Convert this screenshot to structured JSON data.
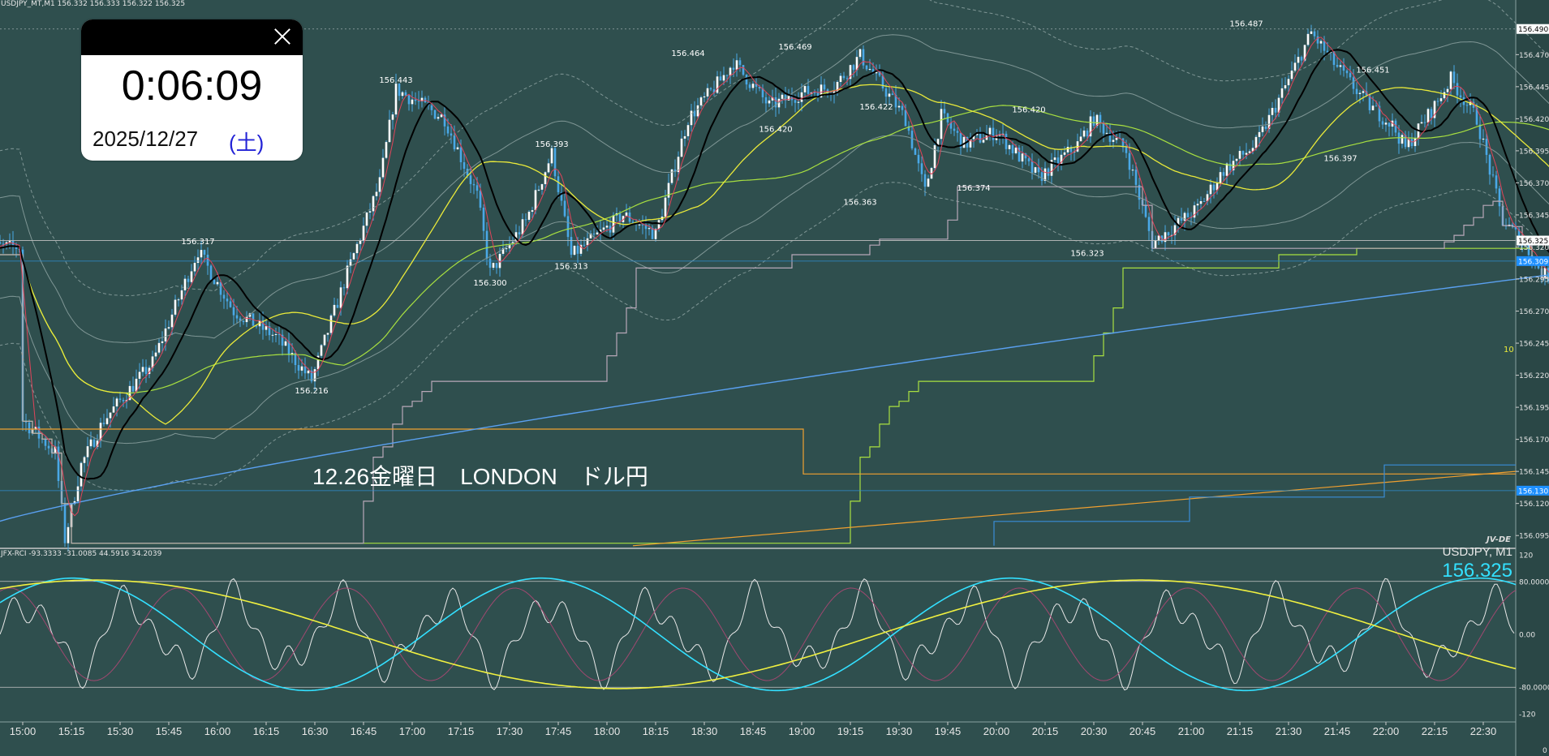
{
  "header": {
    "symbol_info": "USDJPY_MT,M1  156.332 156.333 156.322 156.325"
  },
  "rci": {
    "label": "JFX-RCI -93.3333 -31.0085 44.5916 34.2039"
  },
  "symbol_panel": {
    "name": "USDJPY, M1",
    "price": "156.325"
  },
  "annotation": "12.26金曜日　LONDON　ドル円",
  "clock_widget": {
    "time": "0:06:09",
    "date": "2025/12/27",
    "weekday": "(土)",
    "close_icon": "close-icon"
  },
  "logo": "JV-DE",
  "colors": {
    "background": "#2f4f4e",
    "candle": "#4aa8e6",
    "ma_fast": "#e0445a",
    "ma_mid": "#000000",
    "ma_yellow": "#eaea3a",
    "ma_lime": "#a8e040",
    "ma_gray": "#b8a8b8",
    "ma_long": "#5aa0f0",
    "orange": "#f0a030",
    "rci_cyan": "#33e0ff",
    "rci_yellow": "#f0f040",
    "rci_white": "#e8e8e8"
  },
  "chart_data": [
    {
      "type": "candlestick",
      "title": "USDJPY_MT,M1",
      "x_ticks": [
        "15:00",
        "15:15",
        "15:30",
        "15:45",
        "16:00",
        "16:15",
        "16:30",
        "16:45",
        "17:00",
        "17:15",
        "17:30",
        "17:45",
        "18:00",
        "18:15",
        "18:30",
        "18:45",
        "19:00",
        "19:15",
        "19:30",
        "19:45",
        "20:00",
        "20:15",
        "20:30",
        "20:45",
        "21:00",
        "21:15",
        "21:30",
        "21:45",
        "22:00",
        "22:15",
        "22:30"
      ],
      "y_ticks": [
        "156.470",
        "156.445",
        "156.420",
        "156.395",
        "156.370",
        "156.345",
        "156.320",
        "156.295",
        "156.270",
        "156.245",
        "156.220",
        "156.195",
        "156.170",
        "156.145",
        "156.120",
        "156.095"
      ],
      "ylim": [
        156.085,
        156.505
      ],
      "price_tags": [
        {
          "label": "156.490",
          "value": 156.49,
          "color": "#ffffff"
        },
        {
          "label": "156.325",
          "value": 156.325,
          "color": "#ffffff"
        },
        {
          "label": "156.309",
          "value": 156.309,
          "color": "#1e90ff"
        },
        {
          "label": "156.130",
          "value": 156.13,
          "color": "#1e90ff"
        }
      ],
      "peaks": [
        {
          "label": "156.443",
          "x": "16:55",
          "value": 156.443
        },
        {
          "label": "156.464",
          "x": "18:25",
          "value": 156.464
        },
        {
          "label": "156.469",
          "x": "18:58",
          "value": 156.469
        },
        {
          "label": "156.487",
          "x": "21:17",
          "value": 156.487
        },
        {
          "label": "156.451",
          "x": "21:56",
          "value": 156.451
        },
        {
          "label": "156.422",
          "x": "19:23",
          "value": 156.422
        },
        {
          "label": "156.420",
          "x": "20:10",
          "value": 156.42
        },
        {
          "label": "156.393",
          "x": "17:43",
          "value": 156.393
        },
        {
          "label": "156.317",
          "x": "15:54",
          "value": 156.317
        }
      ],
      "troughs": [
        {
          "label": "156.216",
          "x": "16:29",
          "value": 156.216
        },
        {
          "label": "156.300",
          "x": "17:24",
          "value": 156.3
        },
        {
          "label": "156.313",
          "x": "17:49",
          "value": 156.313
        },
        {
          "label": "156.420",
          "x": "18:52",
          "value": 156.42
        },
        {
          "label": "156.363",
          "x": "19:18",
          "value": 156.363
        },
        {
          "label": "156.374",
          "x": "19:53",
          "value": 156.374
        },
        {
          "label": "156.323",
          "x": "20:28",
          "value": 156.323
        },
        {
          "label": "156.397",
          "x": "21:46",
          "value": 156.397
        }
      ],
      "side_label": "10"
    },
    {
      "type": "line",
      "title": "JFX-RCI",
      "y_ticks": [
        "120",
        "80.0000",
        "0.00",
        "-80.0000",
        "-120"
      ],
      "ylim": [
        -130,
        130
      ],
      "right_bottom_label": "0"
    }
  ]
}
